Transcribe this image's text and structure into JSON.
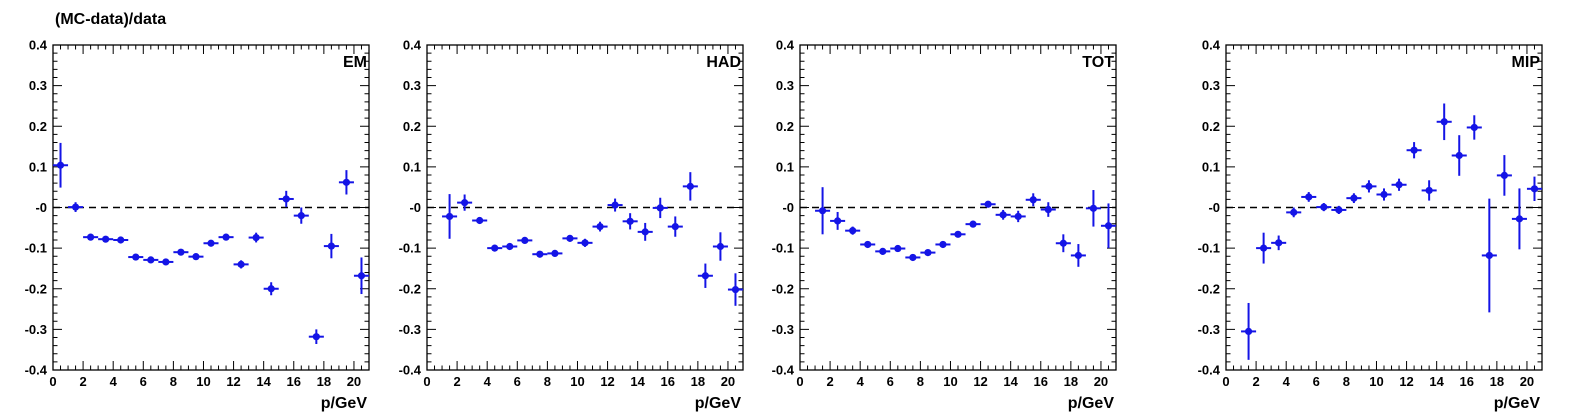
{
  "figure": {
    "ylabel": "(MC-data)/data",
    "series_color": "#1414e6"
  },
  "chart_data": [
    {
      "type": "scatter",
      "label": "EM",
      "xlabel": "p/GeV",
      "xlim": [
        0,
        21
      ],
      "ylim": [
        -0.4,
        0.4
      ],
      "x_ticks": [
        0,
        2,
        4,
        6,
        8,
        10,
        12,
        14,
        16,
        18,
        20
      ],
      "y_ticks": [
        -0.4,
        -0.3,
        -0.2,
        -0.1,
        0,
        0.1,
        0.2,
        0.3,
        0.4
      ],
      "y_tick_labels": [
        "-0.4",
        "-0.3",
        "-0.2",
        "-0.1",
        "-0",
        "0.1",
        "0.2",
        "0.3",
        "0.4"
      ],
      "reference_line": 0,
      "points": [
        {
          "x": 0.5,
          "y": 0.104,
          "yerr": 0.055
        },
        {
          "x": 1.5,
          "y": 0.001,
          "yerr": 0.012
        },
        {
          "x": 2.5,
          "y": -0.073,
          "yerr": 0.005
        },
        {
          "x": 3.5,
          "y": -0.078,
          "yerr": 0.005
        },
        {
          "x": 4.5,
          "y": -0.08,
          "yerr": 0.005
        },
        {
          "x": 5.5,
          "y": -0.122,
          "yerr": 0.005
        },
        {
          "x": 6.5,
          "y": -0.129,
          "yerr": 0.005
        },
        {
          "x": 7.5,
          "y": -0.134,
          "yerr": 0.005
        },
        {
          "x": 8.5,
          "y": -0.11,
          "yerr": 0.006
        },
        {
          "x": 9.5,
          "y": -0.121,
          "yerr": 0.006
        },
        {
          "x": 10.5,
          "y": -0.088,
          "yerr": 0.007
        },
        {
          "x": 11.5,
          "y": -0.073,
          "yerr": 0.008
        },
        {
          "x": 12.5,
          "y": -0.14,
          "yerr": 0.01
        },
        {
          "x": 13.5,
          "y": -0.074,
          "yerr": 0.012
        },
        {
          "x": 14.5,
          "y": -0.2,
          "yerr": 0.016
        },
        {
          "x": 15.5,
          "y": 0.021,
          "yerr": 0.02
        },
        {
          "x": 16.5,
          "y": -0.02,
          "yerr": 0.02
        },
        {
          "x": 17.5,
          "y": -0.318,
          "yerr": 0.018
        },
        {
          "x": 18.5,
          "y": -0.095,
          "yerr": 0.03
        },
        {
          "x": 19.5,
          "y": 0.062,
          "yerr": 0.03
        },
        {
          "x": 20.5,
          "y": -0.168,
          "yerr": 0.045
        }
      ]
    },
    {
      "type": "scatter",
      "label": "HAD",
      "xlabel": "p/GeV",
      "xlim": [
        0,
        21
      ],
      "ylim": [
        -0.4,
        0.4
      ],
      "x_ticks": [
        0,
        2,
        4,
        6,
        8,
        10,
        12,
        14,
        16,
        18,
        20
      ],
      "y_ticks": [
        -0.4,
        -0.3,
        -0.2,
        -0.1,
        0,
        0.1,
        0.2,
        0.3,
        0.4
      ],
      "y_tick_labels": [
        "-0.4",
        "-0.3",
        "-0.2",
        "-0.1",
        "-0",
        "0.1",
        "0.2",
        "0.3",
        "0.4"
      ],
      "reference_line": 0,
      "points": [
        {
          "x": 1.5,
          "y": -0.022,
          "yerr": 0.055
        },
        {
          "x": 2.5,
          "y": 0.012,
          "yerr": 0.02
        },
        {
          "x": 3.5,
          "y": -0.032,
          "yerr": 0.008
        },
        {
          "x": 4.5,
          "y": -0.1,
          "yerr": 0.006
        },
        {
          "x": 5.5,
          "y": -0.096,
          "yerr": 0.006
        },
        {
          "x": 6.5,
          "y": -0.081,
          "yerr": 0.006
        },
        {
          "x": 7.5,
          "y": -0.115,
          "yerr": 0.006
        },
        {
          "x": 8.5,
          "y": -0.113,
          "yerr": 0.006
        },
        {
          "x": 9.5,
          "y": -0.076,
          "yerr": 0.008
        },
        {
          "x": 10.5,
          "y": -0.087,
          "yerr": 0.01
        },
        {
          "x": 11.5,
          "y": -0.047,
          "yerr": 0.012
        },
        {
          "x": 12.5,
          "y": 0.006,
          "yerr": 0.016
        },
        {
          "x": 13.5,
          "y": -0.034,
          "yerr": 0.02
        },
        {
          "x": 14.5,
          "y": -0.06,
          "yerr": 0.022
        },
        {
          "x": 15.5,
          "y": -0.001,
          "yerr": 0.025
        },
        {
          "x": 16.5,
          "y": -0.047,
          "yerr": 0.025
        },
        {
          "x": 17.5,
          "y": 0.052,
          "yerr": 0.035
        },
        {
          "x": 18.5,
          "y": -0.168,
          "yerr": 0.03
        },
        {
          "x": 19.5,
          "y": -0.096,
          "yerr": 0.035
        },
        {
          "x": 20.5,
          "y": -0.202,
          "yerr": 0.04
        }
      ]
    },
    {
      "type": "scatter",
      "label": "TOT",
      "xlabel": "p/GeV",
      "xlim": [
        0,
        21
      ],
      "ylim": [
        -0.4,
        0.4
      ],
      "x_ticks": [
        0,
        2,
        4,
        6,
        8,
        10,
        12,
        14,
        16,
        18,
        20
      ],
      "y_ticks": [
        -0.4,
        -0.3,
        -0.2,
        -0.1,
        0,
        0.1,
        0.2,
        0.3,
        0.4
      ],
      "y_tick_labels": [
        "-0.4",
        "-0.3",
        "-0.2",
        "-0.1",
        "-0",
        "0.1",
        "0.2",
        "0.3",
        "0.4"
      ],
      "reference_line": 0,
      "points": [
        {
          "x": 1.5,
          "y": -0.008,
          "yerr": 0.058
        },
        {
          "x": 2.5,
          "y": -0.033,
          "yerr": 0.022
        },
        {
          "x": 3.5,
          "y": -0.057,
          "yerr": 0.01
        },
        {
          "x": 4.5,
          "y": -0.091,
          "yerr": 0.006
        },
        {
          "x": 5.5,
          "y": -0.108,
          "yerr": 0.005
        },
        {
          "x": 6.5,
          "y": -0.101,
          "yerr": 0.005
        },
        {
          "x": 7.5,
          "y": -0.123,
          "yerr": 0.005
        },
        {
          "x": 8.5,
          "y": -0.111,
          "yerr": 0.005
        },
        {
          "x": 9.5,
          "y": -0.091,
          "yerr": 0.006
        },
        {
          "x": 10.5,
          "y": -0.066,
          "yerr": 0.007
        },
        {
          "x": 11.5,
          "y": -0.041,
          "yerr": 0.008
        },
        {
          "x": 12.5,
          "y": 0.008,
          "yerr": 0.008
        },
        {
          "x": 13.5,
          "y": -0.018,
          "yerr": 0.012
        },
        {
          "x": 14.5,
          "y": -0.022,
          "yerr": 0.014
        },
        {
          "x": 15.5,
          "y": 0.019,
          "yerr": 0.016
        },
        {
          "x": 16.5,
          "y": -0.005,
          "yerr": 0.018
        },
        {
          "x": 17.5,
          "y": -0.088,
          "yerr": 0.022
        },
        {
          "x": 18.5,
          "y": -0.118,
          "yerr": 0.028
        },
        {
          "x": 19.5,
          "y": -0.002,
          "yerr": 0.045
        },
        {
          "x": 20.5,
          "y": -0.045,
          "yerr": 0.055
        }
      ]
    },
    {
      "type": "scatter",
      "label": "MIP",
      "xlabel": "p/GeV",
      "xlim": [
        0,
        21
      ],
      "ylim": [
        -0.4,
        0.4
      ],
      "x_ticks": [
        0,
        2,
        4,
        6,
        8,
        10,
        12,
        14,
        16,
        18,
        20
      ],
      "y_ticks": [
        -0.4,
        -0.3,
        -0.2,
        -0.1,
        0,
        0.1,
        0.2,
        0.3,
        0.4
      ],
      "y_tick_labels": [
        "-0.4",
        "-0.3",
        "-0.2",
        "-0.1",
        "-0",
        "0.1",
        "0.2",
        "0.3",
        "0.4"
      ],
      "reference_line": 0,
      "points": [
        {
          "x": 1.5,
          "y": -0.305,
          "yerr": 0.07
        },
        {
          "x": 2.5,
          "y": -0.1,
          "yerr": 0.038
        },
        {
          "x": 3.5,
          "y": -0.087,
          "yerr": 0.018
        },
        {
          "x": 4.5,
          "y": -0.012,
          "yerr": 0.012
        },
        {
          "x": 5.5,
          "y": 0.026,
          "yerr": 0.012
        },
        {
          "x": 6.5,
          "y": 0.001,
          "yerr": 0.01
        },
        {
          "x": 7.5,
          "y": -0.006,
          "yerr": 0.01
        },
        {
          "x": 8.5,
          "y": 0.023,
          "yerr": 0.012
        },
        {
          "x": 9.5,
          "y": 0.052,
          "yerr": 0.015
        },
        {
          "x": 10.5,
          "y": 0.032,
          "yerr": 0.015
        },
        {
          "x": 11.5,
          "y": 0.056,
          "yerr": 0.015
        },
        {
          "x": 12.5,
          "y": 0.141,
          "yerr": 0.02
        },
        {
          "x": 13.5,
          "y": 0.042,
          "yerr": 0.025
        },
        {
          "x": 14.5,
          "y": 0.211,
          "yerr": 0.045
        },
        {
          "x": 15.5,
          "y": 0.128,
          "yerr": 0.05
        },
        {
          "x": 16.5,
          "y": 0.197,
          "yerr": 0.03
        },
        {
          "x": 17.5,
          "y": -0.118,
          "yerr": 0.14
        },
        {
          "x": 18.5,
          "y": 0.079,
          "yerr": 0.05
        },
        {
          "x": 19.5,
          "y": -0.028,
          "yerr": 0.075
        },
        {
          "x": 20.5,
          "y": 0.046,
          "yerr": 0.03
        }
      ]
    }
  ]
}
